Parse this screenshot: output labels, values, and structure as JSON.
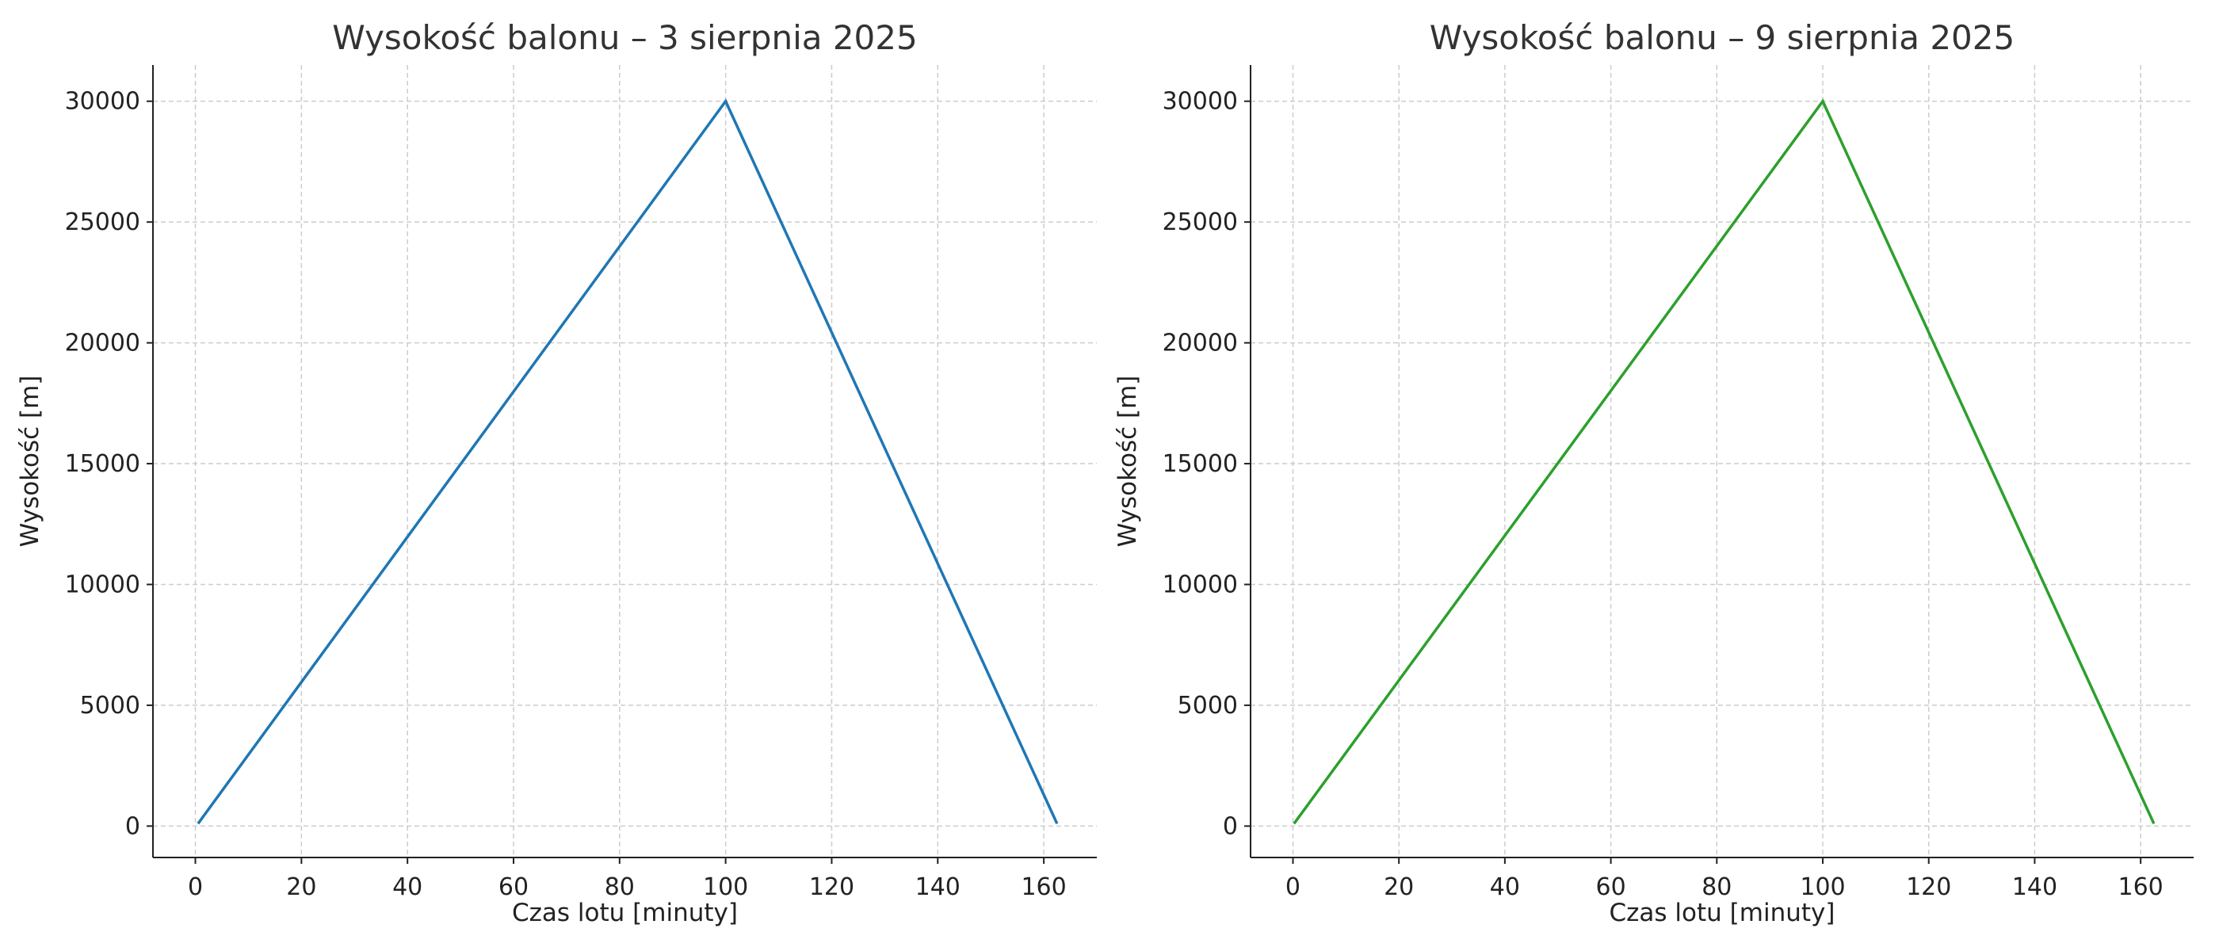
{
  "chart_data": [
    {
      "type": "line",
      "title": "Wysokość balonu – 3 sierpnia 2025",
      "xlabel": "Czas lotu [minuty]",
      "ylabel": "Wysokość [m]",
      "xlim": [
        -8,
        170
      ],
      "ylim": [
        -1300,
        31500
      ],
      "xticks": [
        0,
        20,
        40,
        60,
        80,
        100,
        120,
        140,
        160
      ],
      "yticks": [
        0,
        5000,
        10000,
        15000,
        20000,
        25000,
        30000
      ],
      "grid": true,
      "series": [
        {
          "color": "#1f77b4",
          "x": [
            0.5,
            100,
            162.5
          ],
          "y": [
            100,
            30000,
            100
          ]
        }
      ]
    },
    {
      "type": "line",
      "title": "Wysokość balonu – 9 sierpnia 2025",
      "xlabel": "Czas lotu [minuty]",
      "ylabel": "Wysokość [m]",
      "xlim": [
        -8,
        170
      ],
      "ylim": [
        -1300,
        31500
      ],
      "xticks": [
        0,
        20,
        40,
        60,
        80,
        100,
        120,
        140,
        160
      ],
      "yticks": [
        0,
        5000,
        10000,
        15000,
        20000,
        25000,
        30000
      ],
      "grid": true,
      "series": [
        {
          "color": "#2ca02c",
          "x": [
            0.2,
            100,
            162.5
          ],
          "y": [
            100,
            30000,
            100
          ]
        }
      ]
    }
  ]
}
